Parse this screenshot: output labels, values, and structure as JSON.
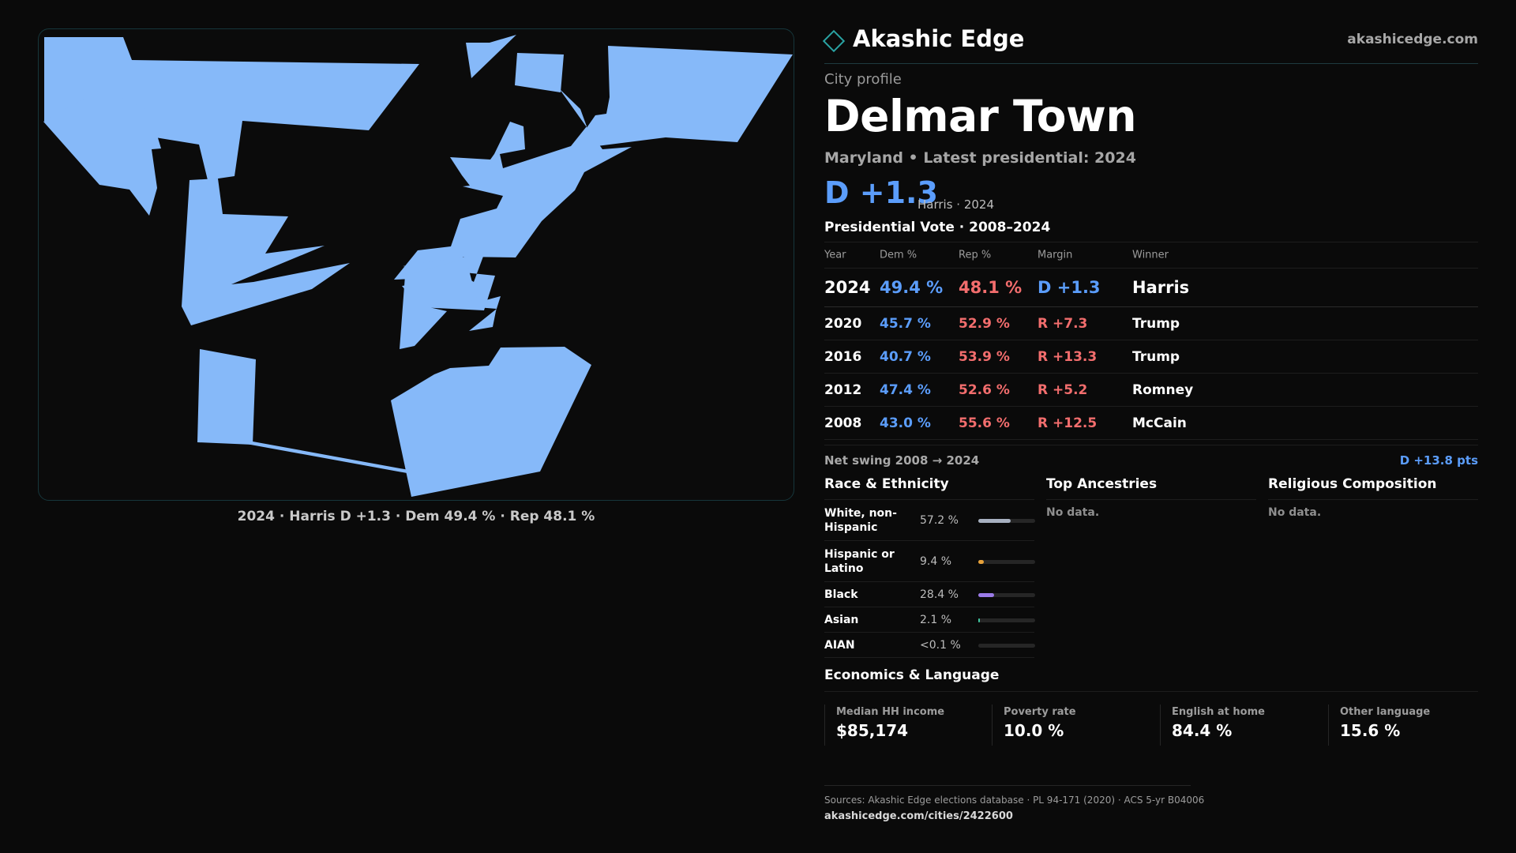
{
  "brand": {
    "name": "Akashic Edge",
    "url": "akashicedge.com"
  },
  "profile": {
    "eyebrow": "City profile",
    "name": "Delmar Town",
    "subtitle": "Maryland • Latest presidential: 2024",
    "margin": "D +1.3",
    "margin_note": "Harris · 2024"
  },
  "map": {
    "caption": "2024 · Harris D +1.3 · Dem 49.4 % · Rep 48.1 %",
    "fill_color": "#86b9f9"
  },
  "votes": {
    "title": "Presidential Vote · 2008–2024",
    "headers": [
      "Year",
      "Dem %",
      "Rep %",
      "Margin",
      "Winner"
    ],
    "rows": [
      {
        "year": "2024",
        "dem": "49.4 %",
        "rep": "48.1 %",
        "margin": "D +1.3",
        "winner": "Harris",
        "party": "D"
      },
      {
        "year": "2020",
        "dem": "45.7 %",
        "rep": "52.9 %",
        "margin": "R +7.3",
        "winner": "Trump",
        "party": "R"
      },
      {
        "year": "2016",
        "dem": "40.7 %",
        "rep": "53.9 %",
        "margin": "R +13.3",
        "winner": "Trump",
        "party": "R"
      },
      {
        "year": "2012",
        "dem": "47.4 %",
        "rep": "52.6 %",
        "margin": "R +5.2",
        "winner": "Romney",
        "party": "R"
      },
      {
        "year": "2008",
        "dem": "43.0 %",
        "rep": "55.6 %",
        "margin": "R +12.5",
        "winner": "McCain",
        "party": "R"
      }
    ]
  },
  "swing": {
    "label": "Net swing 2008 → 2024",
    "value": "D +13.8 pts"
  },
  "race": {
    "title": "Race & Ethnicity",
    "rows": [
      {
        "label": "White, non-Hispanic",
        "value": "57.2 %",
        "share": 0.572,
        "color": "#a7b0c0"
      },
      {
        "label": "Hispanic or Latino",
        "value": "9.4 %",
        "share": 0.094,
        "color": "#e8a23a"
      },
      {
        "label": "Black",
        "value": "28.4 %",
        "share": 0.284,
        "color": "#9b7be8"
      },
      {
        "label": "Asian",
        "value": "2.1 %",
        "share": 0.021,
        "color": "#3fc7a0"
      },
      {
        "label": "AIAN",
        "value": "<0.1 %",
        "share": 0.0,
        "color": "#8a8a8a"
      }
    ]
  },
  "ancestries": {
    "title": "Top Ancestries",
    "empty": "No data."
  },
  "religion": {
    "title": "Religious Composition",
    "empty": "No data."
  },
  "economics": {
    "title": "Economics & Language",
    "stats": [
      {
        "label": "Median HH income",
        "value": "$85,174"
      },
      {
        "label": "Poverty rate",
        "value": "10.0 %"
      },
      {
        "label": "English at home",
        "value": "84.4 %"
      },
      {
        "label": "Other language",
        "value": "15.6 %"
      }
    ]
  },
  "footer": {
    "sources": "Sources: Akashic Edge elections database · PL 94-171 (2020) · ACS 5-yr B04006",
    "url": "akashicedge.com/cities/2422600"
  }
}
